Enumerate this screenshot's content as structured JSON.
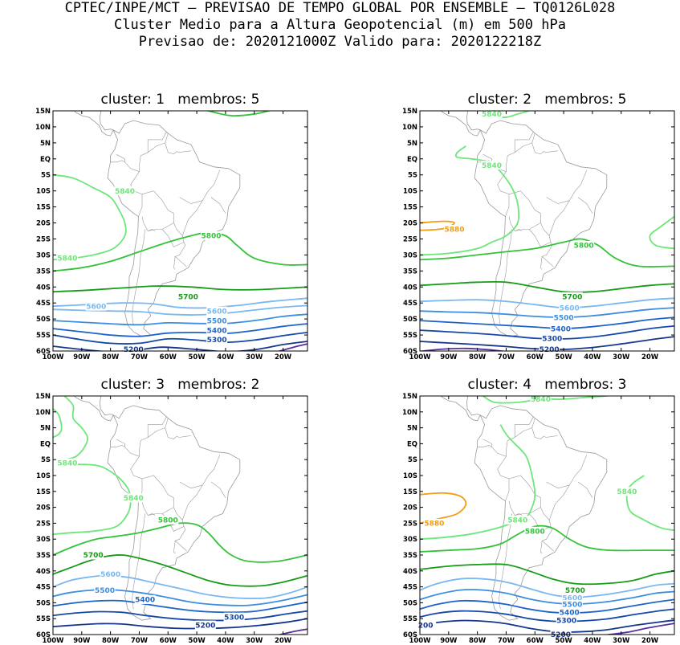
{
  "header": {
    "line1": "CPTEC/INPE/MCT — PREVISAO DE TEMPO GLOBAL POR ENSEMBLE — TQ0126L028",
    "line2": "Cluster Medio para a Altura Geopotencial (m) em 500 hPa",
    "line3": "Previsao de: 2020121000Z   Valido para: 2020122218Z"
  },
  "axes": {
    "lat_labels": [
      "15N",
      "10N",
      "5N",
      "EQ",
      "5S",
      "10S",
      "15S",
      "20S",
      "25S",
      "30S",
      "35S",
      "40S",
      "45S",
      "50S",
      "55S",
      "60S"
    ],
    "lon_labels": [
      "100W",
      "90W",
      "80W",
      "70W",
      "60W",
      "50W",
      "40W",
      "30W",
      "20W"
    ]
  },
  "colors": {
    "c5880": "#f39c12",
    "c5840": "#6ee67a",
    "c5800": "#34c23a",
    "c5700": "#169c16",
    "c5600": "#7ab8f0",
    "c5500": "#3d8ee0",
    "c5400": "#1e63c8",
    "c5300": "#1648a8",
    "c5200": "#15368a",
    "c5100": "#5a2ea0",
    "coast": "#999999"
  },
  "panels": [
    {
      "cluster_label": "cluster:",
      "cluster": "1",
      "members_label": "membros:",
      "members": "5",
      "labels": [
        {
          "text": "5840",
          "color": "c5840",
          "lon": -75,
          "lat": -10
        },
        {
          "text": "5840",
          "color": "c5840",
          "lon": -95,
          "lat": -31
        },
        {
          "text": "5800",
          "color": "c5800",
          "lon": -45,
          "lat": -24
        },
        {
          "text": "5700",
          "color": "c5700",
          "lon": -53,
          "lat": -43
        },
        {
          "text": "5600",
          "color": "c5600",
          "lon": -85,
          "lat": -46
        },
        {
          "text": "5600",
          "color": "c5600",
          "lon": -43,
          "lat": -47.5
        },
        {
          "text": "5500",
          "color": "c5500",
          "lon": -43,
          "lat": -50.5
        },
        {
          "text": "5400",
          "color": "c5400",
          "lon": -43,
          "lat": -53.5
        },
        {
          "text": "5300",
          "color": "c5300",
          "lon": -43,
          "lat": -56.5
        },
        {
          "text": "5200",
          "color": "c5200",
          "lon": -72,
          "lat": -59.5
        }
      ]
    },
    {
      "cluster_label": "cluster:",
      "cluster": "2",
      "members_label": "membros:",
      "members": "5",
      "labels": [
        {
          "text": "5840",
          "color": "c5840",
          "lon": -75,
          "lat": 14
        },
        {
          "text": "5840",
          "color": "c5840",
          "lon": -75,
          "lat": -2
        },
        {
          "text": "5880",
          "color": "c5880",
          "lon": -88,
          "lat": -22
        },
        {
          "text": "5800",
          "color": "c5800",
          "lon": -43,
          "lat": -27
        },
        {
          "text": "5700",
          "color": "c5700",
          "lon": -47,
          "lat": -43
        },
        {
          "text": "5600",
          "color": "c5600",
          "lon": -48,
          "lat": -46.5
        },
        {
          "text": "5500",
          "color": "c5500",
          "lon": -50,
          "lat": -49.5
        },
        {
          "text": "5400",
          "color": "c5400",
          "lon": -51,
          "lat": -53
        },
        {
          "text": "5300",
          "color": "c5300",
          "lon": -54,
          "lat": -56
        },
        {
          "text": "5200",
          "color": "c5200",
          "lon": -55,
          "lat": -59.5
        }
      ]
    },
    {
      "cluster_label": "cluster:",
      "cluster": "3",
      "members_label": "membros:",
      "members": "2",
      "labels": [
        {
          "text": "5840",
          "color": "c5840",
          "lon": -95,
          "lat": -6
        },
        {
          "text": "5840",
          "color": "c5840",
          "lon": -72,
          "lat": -17
        },
        {
          "text": "5800",
          "color": "c5800",
          "lon": -60,
          "lat": -24
        },
        {
          "text": "5700",
          "color": "c5700",
          "lon": -86,
          "lat": -35
        },
        {
          "text": "5600",
          "color": "c5600",
          "lon": -80,
          "lat": -41
        },
        {
          "text": "5500",
          "color": "c5500",
          "lon": -82,
          "lat": -46
        },
        {
          "text": "5400",
          "color": "c5400",
          "lon": -68,
          "lat": -49
        },
        {
          "text": "5300",
          "color": "c5300",
          "lon": -37,
          "lat": -54.5
        },
        {
          "text": "5200",
          "color": "c5200",
          "lon": -47,
          "lat": -57
        }
      ]
    },
    {
      "cluster_label": "cluster:",
      "cluster": "4",
      "members_label": "membros:",
      "members": "3",
      "labels": [
        {
          "text": "5840",
          "color": "c5840",
          "lon": -58,
          "lat": 14
        },
        {
          "text": "5840",
          "color": "c5840",
          "lon": -28,
          "lat": -15
        },
        {
          "text": "5880",
          "color": "c5880",
          "lon": -95,
          "lat": -25
        },
        {
          "text": "5840",
          "color": "c5840",
          "lon": -66,
          "lat": -24
        },
        {
          "text": "5800",
          "color": "c5800",
          "lon": -60,
          "lat": -27.5
        },
        {
          "text": "5700",
          "color": "c5700",
          "lon": -46,
          "lat": -46
        },
        {
          "text": "5600",
          "color": "c5600",
          "lon": -47,
          "lat": -48.5
        },
        {
          "text": "5500",
          "color": "c5500",
          "lon": -47,
          "lat": -50.5
        },
        {
          "text": "5400",
          "color": "c5400",
          "lon": -48,
          "lat": -53
        },
        {
          "text": "5300",
          "color": "c5300",
          "lon": -49,
          "lat": -55.5
        },
        {
          "text": "5200",
          "color": "c5200",
          "lon": -51,
          "lat": -60
        },
        {
          "text": "200",
          "color": "c5200",
          "lon": -98,
          "lat": -57
        }
      ]
    }
  ]
}
